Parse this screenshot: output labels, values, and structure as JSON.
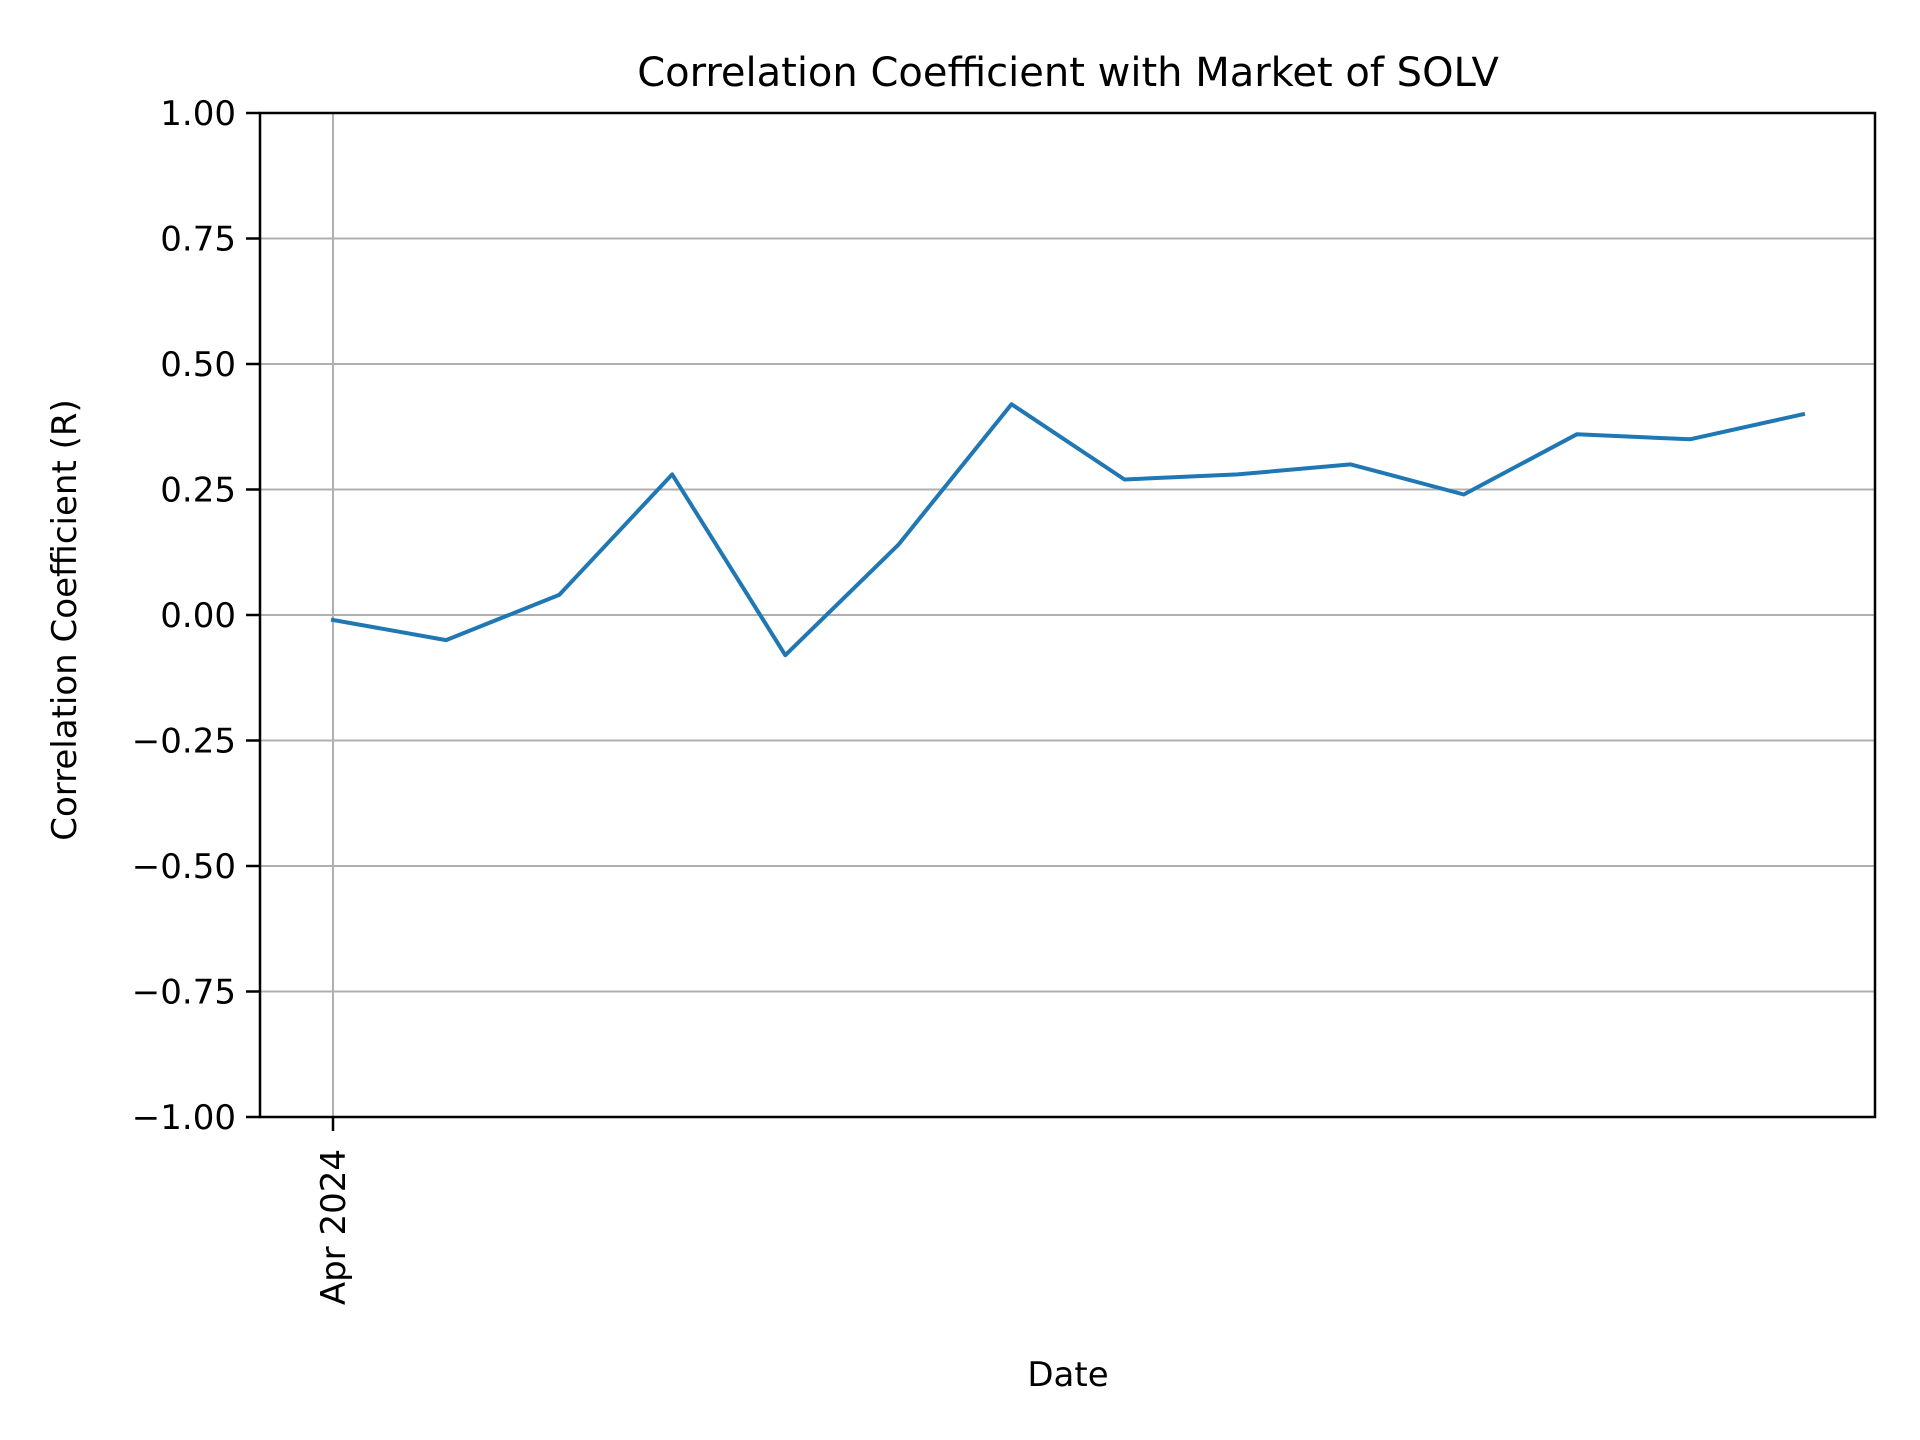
{
  "chart_data": {
    "type": "line",
    "title": "Correlation Coefficient with Market of SOLV",
    "xlabel": "Date",
    "ylabel": "Correlation Coefficient (R)",
    "ylim": [
      -1.0,
      1.0
    ],
    "yticks": [
      1.0,
      0.75,
      0.5,
      0.25,
      0.0,
      -0.25,
      -0.5,
      -0.75,
      -1.0
    ],
    "ytick_labels": [
      "1.00",
      "0.75",
      "0.50",
      "0.25",
      "0.00",
      "−0.25",
      "−0.50",
      "−0.75",
      "−1.00"
    ],
    "xtick_labels": [
      "Apr 2024"
    ],
    "xtick_index": [
      0
    ],
    "grid": true,
    "legend": null,
    "series": [
      {
        "name": "Correlation Coefficient",
        "color": "#1f77b4",
        "values": [
          -0.01,
          -0.05,
          0.04,
          0.28,
          -0.08,
          0.14,
          0.42,
          0.27,
          0.28,
          0.3,
          0.24,
          0.36,
          0.35,
          0.4
        ]
      }
    ]
  },
  "colors": {
    "line": "#1f77b4",
    "grid": "#b0b0b0",
    "axis": "#000000",
    "background": "#ffffff"
  }
}
